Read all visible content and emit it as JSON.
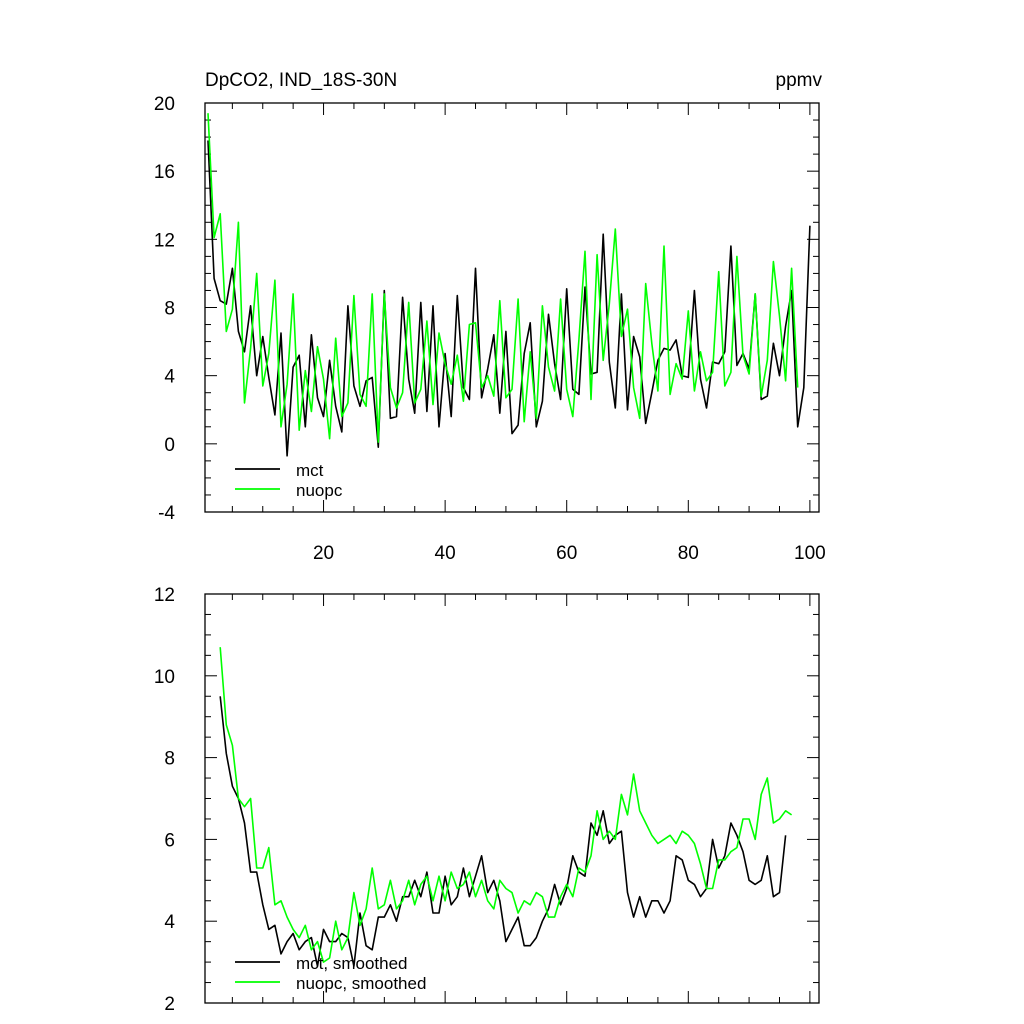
{
  "colors": {
    "mct": "#000000",
    "nuopc": "#00ff00",
    "axis": "#000000",
    "background": "#ffffff"
  },
  "chart_data": [
    {
      "type": "line",
      "title": "DpCO2, IND_18S-30N",
      "units": "ppmv",
      "xlabel": "",
      "ylabel": "",
      "xlim": [
        0.5,
        101.5
      ],
      "ylim": [
        -4,
        20
      ],
      "grid": false,
      "legend": "bottom-left",
      "x_ticks": [
        20,
        40,
        60,
        80,
        100
      ],
      "y_ticks": [
        -4,
        0,
        4,
        8,
        12,
        16,
        20
      ],
      "y_tick_labels": [
        "-4",
        "0",
        "4",
        "8",
        "12",
        "16",
        "20"
      ],
      "x_start": 1,
      "series": [
        {
          "name": "mct",
          "color": "#000000",
          "values": [
            17.8,
            9.7,
            8.4,
            8.2,
            10.3,
            6.6,
            5.4,
            8.1,
            4.0,
            6.3,
            3.9,
            1.7,
            6.5,
            -0.7,
            4.5,
            5.2,
            1.0,
            6.4,
            2.7,
            1.6,
            4.9,
            2.2,
            0.7,
            8.1,
            3.4,
            2.2,
            3.7,
            3.9,
            -0.2,
            9.0,
            1.5,
            1.6,
            8.6,
            3.8,
            1.8,
            8.3,
            1.9,
            8.1,
            1.0,
            5.3,
            1.6,
            8.7,
            3.3,
            2.6,
            10.3,
            2.7,
            4.4,
            6.4,
            1.8,
            6.6,
            0.6,
            1.1,
            5.3,
            7.1,
            1.0,
            2.5,
            7.6,
            4.7,
            2.6,
            9.1,
            3.2,
            2.9,
            9.2,
            4.1,
            4.2,
            12.3,
            4.8,
            2.1,
            8.8,
            2.0,
            6.3,
            5.1,
            1.2,
            3.0,
            4.9,
            5.6,
            5.5,
            6.1,
            4.0,
            3.9,
            9.0,
            3.8,
            2.1,
            4.8,
            4.7,
            5.4,
            11.6,
            4.6,
            5.3,
            4.4,
            8.8,
            2.6,
            2.8,
            5.9,
            4.0,
            6.9,
            9.0,
            1.0,
            3.3,
            12.8
          ]
        },
        {
          "name": "nuopc",
          "color": "#00ff00",
          "values": [
            19.4,
            12.1,
            13.5,
            6.6,
            7.9,
            13.0,
            2.4,
            5.6,
            10.0,
            3.4,
            5.3,
            9.6,
            1.0,
            3.5,
            8.8,
            0.8,
            4.3,
            1.9,
            5.7,
            3.8,
            0.3,
            6.2,
            1.6,
            2.4,
            8.7,
            2.9,
            2.2,
            8.8,
            0.1,
            8.8,
            3.3,
            2.1,
            3.0,
            8.3,
            2.4,
            3.2,
            7.2,
            2.3,
            6.5,
            4.7,
            3.5,
            5.2,
            2.5,
            7.0,
            7.1,
            3.3,
            4.0,
            2.8,
            8.4,
            2.7,
            3.2,
            8.5,
            1.3,
            5.4,
            1.5,
            8.1,
            4.5,
            3.1,
            8.5,
            3.2,
            1.6,
            6.1,
            11.3,
            2.6,
            11.1,
            4.9,
            8.2,
            12.6,
            6.3,
            7.9,
            3.3,
            1.5,
            9.4,
            5.9,
            3.1,
            11.6,
            2.9,
            4.7,
            3.8,
            7.8,
            3.1,
            5.4,
            3.7,
            4.2,
            10.1,
            3.4,
            4.2,
            11.0,
            5.2,
            4.1,
            8.8,
            2.8,
            4.9,
            10.7,
            7.5,
            3.7,
            10.3,
            3.3
          ]
        }
      ]
    },
    {
      "type": "line",
      "title": "",
      "xlabel": "",
      "ylabel": "",
      "xlim": [
        0.5,
        101.5
      ],
      "ylim": [
        2,
        12
      ],
      "grid": false,
      "legend": "bottom-left",
      "x_ticks": [
        20,
        40,
        60,
        80,
        100
      ],
      "y_ticks": [
        2,
        4,
        6,
        8,
        10,
        12
      ],
      "y_tick_labels": [
        "2",
        "4",
        "6",
        "8",
        "10",
        "12"
      ],
      "x_start": 3,
      "series": [
        {
          "name": "mct, smoothed",
          "color": "#000000",
          "values": [
            9.5,
            8.1,
            7.3,
            7.0,
            6.4,
            5.2,
            5.2,
            4.4,
            3.8,
            3.9,
            3.2,
            3.5,
            3.7,
            3.3,
            3.5,
            3.6,
            2.9,
            3.8,
            3.5,
            3.5,
            3.7,
            3.6,
            2.9,
            4.2,
            3.4,
            3.3,
            4.1,
            4.1,
            4.4,
            4.0,
            4.6,
            4.6,
            5.0,
            4.6,
            5.2,
            4.2,
            4.2,
            5.1,
            4.4,
            4.6,
            5.3,
            4.6,
            5.1,
            5.6,
            4.7,
            5.0,
            4.5,
            3.5,
            3.8,
            4.1,
            3.4,
            3.4,
            3.6,
            4.0,
            4.3,
            4.9,
            4.4,
            4.8,
            5.6,
            5.2,
            5.1,
            6.4,
            6.1,
            6.7,
            5.9,
            6.1,
            6.2,
            4.7,
            4.1,
            4.6,
            4.1,
            4.5,
            4.5,
            4.2,
            4.5,
            5.6,
            5.5,
            5.0,
            4.9,
            4.6,
            4.8,
            6.0,
            5.3,
            5.6,
            6.4,
            6.1,
            5.7,
            5.0,
            4.9,
            5.0,
            5.6,
            4.6,
            4.7,
            6.1
          ]
        },
        {
          "name": "nuopc, smoothed",
          "color": "#00ff00",
          "values": [
            10.7,
            8.8,
            8.3,
            7.0,
            6.8,
            7.0,
            5.3,
            5.3,
            5.8,
            4.4,
            4.5,
            4.1,
            3.8,
            3.6,
            3.9,
            3.3,
            3.5,
            3.0,
            3.1,
            4.0,
            3.3,
            3.6,
            4.7,
            3.9,
            4.3,
            5.3,
            4.3,
            4.4,
            5.0,
            4.3,
            4.5,
            5.0,
            4.4,
            4.9,
            5.1,
            4.5,
            5.1,
            4.5,
            5.2,
            4.8,
            4.9,
            5.2,
            4.6,
            5.0,
            4.5,
            4.3,
            5.0,
            4.8,
            4.7,
            4.2,
            4.5,
            4.4,
            4.7,
            4.6,
            4.1,
            4.1,
            4.6,
            4.9,
            4.6,
            5.3,
            5.2,
            5.6,
            6.7,
            6.0,
            6.2,
            6.0,
            7.1,
            6.6,
            7.6,
            6.7,
            6.4,
            6.1,
            5.9,
            6.0,
            6.1,
            5.9,
            6.2,
            6.1,
            5.9,
            5.4,
            4.8,
            4.8,
            5.5,
            5.5,
            5.7,
            5.8,
            6.5,
            6.5,
            6.0,
            7.1,
            7.5,
            6.4,
            6.5,
            6.7,
            6.6
          ]
        }
      ]
    }
  ]
}
